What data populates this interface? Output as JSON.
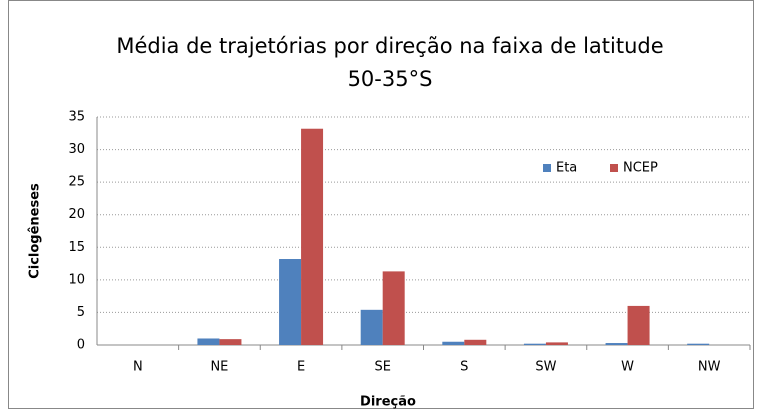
{
  "chart_data": {
    "type": "bar",
    "title": "Média de trajetórias por direção na faixa de latitude 50-35°S",
    "x_label": "Direção",
    "y_label": "Ciclogêneses",
    "categories": [
      "N",
      "NE",
      "E",
      "SE",
      "S",
      "SW",
      "W",
      "NW"
    ],
    "series": [
      {
        "name": "Eta",
        "color": "#4f81bd",
        "values": [
          0,
          1,
          13.2,
          5.4,
          0.5,
          0.2,
          0.3,
          0.2
        ]
      },
      {
        "name": "NCEP",
        "color": "#c0504d",
        "values": [
          0,
          0.9,
          33.2,
          11.3,
          0.8,
          0.4,
          6,
          0
        ]
      }
    ],
    "ylim": [
      0,
      35
    ],
    "yticks": [
      0,
      5,
      10,
      15,
      20,
      25,
      30,
      35
    ],
    "grid": true,
    "legend": "upper right"
  }
}
